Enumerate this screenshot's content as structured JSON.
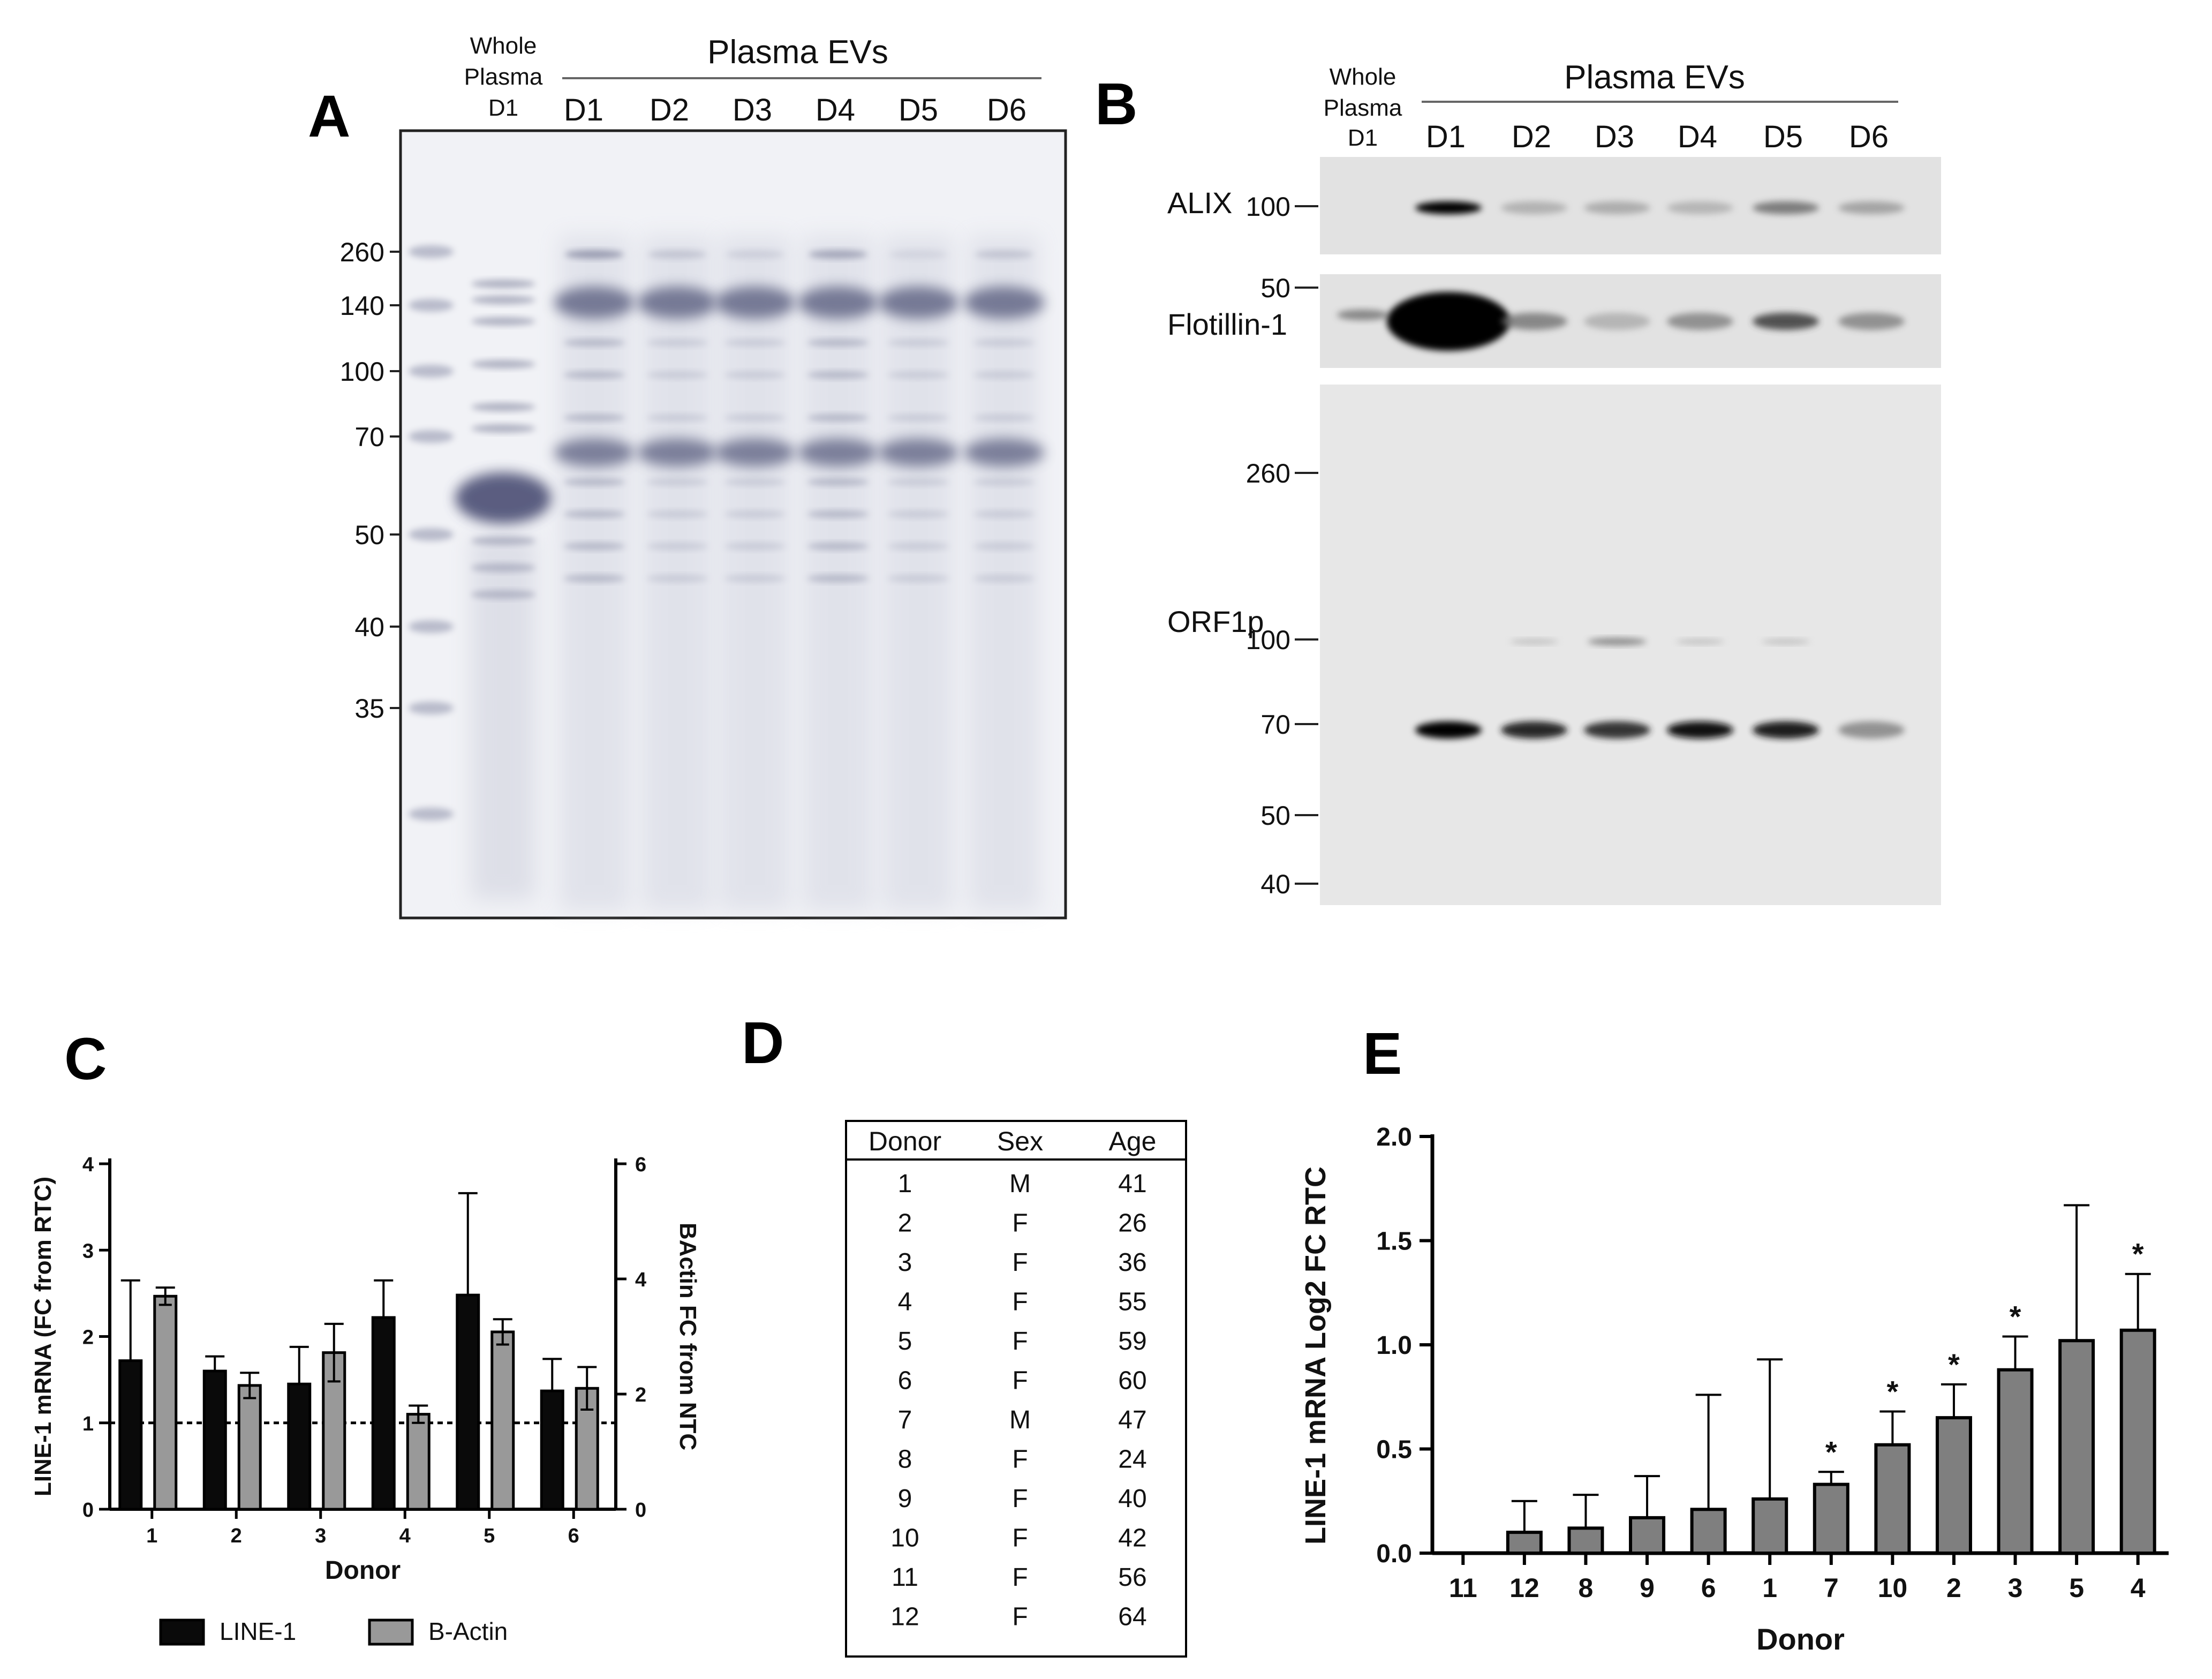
{
  "panel_A": {
    "letter": "A",
    "whole_plasma_label": [
      "Whole",
      "Plasma",
      "D1"
    ],
    "group_label": "Plasma EVs",
    "lanes": [
      "D1",
      "D2",
      "D3",
      "D4",
      "D5",
      "D6"
    ],
    "mw_markers": [
      "260",
      "140",
      "100",
      "70",
      "50",
      "40",
      "35"
    ]
  },
  "panel_B": {
    "letter": "B",
    "whole_plasma_label": [
      "Whole",
      "Plasma",
      "D1"
    ],
    "group_label": "Plasma EVs",
    "lanes": [
      "D1",
      "D2",
      "D3",
      "D4",
      "D5",
      "D6"
    ],
    "blots": [
      {
        "protein": "ALIX",
        "markers": [
          "100"
        ],
        "intensity": [
          0,
          1.0,
          0.22,
          0.25,
          0.2,
          0.5,
          0.3
        ]
      },
      {
        "protein": "Flotillin-1",
        "markers": [
          "50"
        ],
        "intensity": [
          0.45,
          1.0,
          0.45,
          0.2,
          0.4,
          0.7,
          0.4
        ]
      },
      {
        "protein": "ORF1p",
        "markers": [
          "260",
          "100",
          "70",
          "50",
          "40"
        ],
        "intensity": [
          0,
          1.0,
          0.85,
          0.8,
          0.95,
          0.9,
          0.4
        ]
      }
    ]
  },
  "panel_C": {
    "letter": "C",
    "chart_data": {
      "type": "bar",
      "categories": [
        "1",
        "2",
        "3",
        "4",
        "5",
        "6"
      ],
      "xlabel": "Donor",
      "ylabel_left": "LINE-1 mRNA  (FC from RTC)",
      "ylabel_right": "BActin FC from NTC",
      "ylim_left": [
        0,
        4
      ],
      "ylim_right": [
        0,
        6
      ],
      "yticks_left": [
        "0",
        "1",
        "2",
        "3",
        "4"
      ],
      "yticks_right": [
        "0",
        "2",
        "4",
        "6"
      ],
      "reference_line_y": 1,
      "series": [
        {
          "name": "LINE-1",
          "axis": "left",
          "color": "#0a0a0a",
          "values": [
            1.72,
            1.6,
            1.45,
            2.22,
            2.48,
            1.37
          ],
          "errors": [
            0.93,
            0.17,
            0.43,
            0.43,
            1.18,
            0.37
          ]
        },
        {
          "name": "B-Actin",
          "axis": "right",
          "color": "#999999",
          "values": [
            3.7,
            2.15,
            2.72,
            1.65,
            3.08,
            2.1
          ],
          "errors": [
            0.15,
            0.22,
            0.5,
            0.15,
            0.22,
            0.37
          ]
        }
      ],
      "legend_position": "bottom"
    }
  },
  "panel_D": {
    "letter": "D",
    "columns": [
      "Donor",
      "Sex",
      "Age"
    ],
    "rows": [
      [
        "1",
        "M",
        "41"
      ],
      [
        "2",
        "F",
        "26"
      ],
      [
        "3",
        "F",
        "36"
      ],
      [
        "4",
        "F",
        "55"
      ],
      [
        "5",
        "F",
        "59"
      ],
      [
        "6",
        "F",
        "60"
      ],
      [
        "7",
        "M",
        "47"
      ],
      [
        "8",
        "F",
        "24"
      ],
      [
        "9",
        "F",
        "40"
      ],
      [
        "10",
        "F",
        "42"
      ],
      [
        "11",
        "F",
        "56"
      ],
      [
        "12",
        "F",
        "64"
      ]
    ]
  },
  "panel_E": {
    "letter": "E",
    "chart_data": {
      "type": "bar",
      "categories": [
        "11",
        "12",
        "8",
        "9",
        "6",
        "1",
        "7",
        "10",
        "2",
        "3",
        "5",
        "4"
      ],
      "values": [
        0.0,
        0.1,
        0.12,
        0.17,
        0.21,
        0.26,
        0.33,
        0.52,
        0.65,
        0.88,
        1.02,
        1.07
      ],
      "errors": [
        0.0,
        0.15,
        0.16,
        0.2,
        0.55,
        0.67,
        0.06,
        0.16,
        0.16,
        0.16,
        0.65,
        0.27
      ],
      "significant": [
        false,
        false,
        false,
        false,
        false,
        false,
        true,
        true,
        true,
        true,
        false,
        true
      ],
      "significance_marker": "*",
      "xlabel": "Donor",
      "ylabel": "LINE-1 mRNA Log2 FC RTC",
      "ylim": [
        0,
        2.0
      ],
      "yticks": [
        "0.0",
        "0.5",
        "1.0",
        "1.5",
        "2.0"
      ],
      "bar_color": "#7f7f7f"
    }
  }
}
